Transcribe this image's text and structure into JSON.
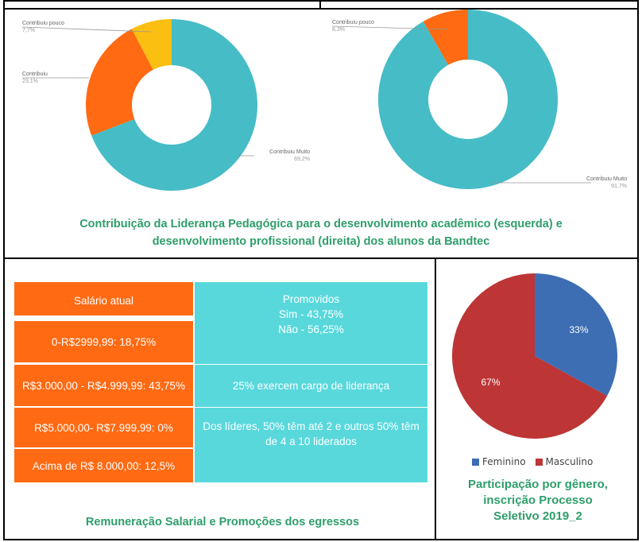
{
  "colors": {
    "teal": "#46bcc6",
    "orange": "#ff6a13",
    "yellow": "#fbbf11",
    "caption_green": "#2e9e6a",
    "table_orange": "#ff6a13",
    "table_cyan": "#59d8dc",
    "pie_blue": "#3d6eb4",
    "pie_red": "#bd3535"
  },
  "chart_data": [
    {
      "type": "pie",
      "variant": "donut",
      "slices": [
        {
          "label": "Contribuiu Muito",
          "value": 69.2,
          "display": "69,2%",
          "color": "#46bcc6"
        },
        {
          "label": "Contribuiu",
          "value": 23.1,
          "display": "23,1%",
          "color": "#ff6a13"
        },
        {
          "label": "Contribuiu pouco",
          "value": 7.7,
          "display": "7,7%",
          "color": "#fbbf11"
        }
      ]
    },
    {
      "type": "pie",
      "variant": "donut",
      "slices": [
        {
          "label": "Contribuiu Muito",
          "value": 91.7,
          "display": "91,7%",
          "color": "#46bcc6"
        },
        {
          "label": "Contribuiu pouco",
          "value": 8.3,
          "display": "8,3%",
          "color": "#ff6a13"
        }
      ]
    },
    {
      "type": "pie",
      "slices": [
        {
          "label": "Feminino",
          "value": 33,
          "display": "33%",
          "color": "#3d6eb4"
        },
        {
          "label": "Masculino",
          "value": 67,
          "display": "67%",
          "color": "#bd3535"
        }
      ],
      "legend": "bottom"
    }
  ],
  "captions": {
    "top_line1": "Contribuição da Liderança Pedagógica para o desenvolvimento acadêmico (esquerda) e",
    "top_line2": "desenvolvimento profissional (direita) dos alunos da Bandtec",
    "table": "Remuneração Salarial e Promoções dos egressos",
    "pie_line1": "Participação por gênero,",
    "pie_line2": "inscrição Processo",
    "pie_line3": "Seletivo 2019_2"
  },
  "table": {
    "left": [
      "Salário atual",
      "0-R$2999,99: 18,75%",
      "R$3.000,00 - R$4.999,99: 43,75%",
      "R$5.000,00- R$7.999,99: 0%",
      "Acima de R$ 8.000,00: 12,5%"
    ],
    "right": {
      "promovidos": "Promovidos",
      "sim": "Sim - 43,75%",
      "nao": "Não - 56,25%",
      "lideranca": "25% exercem cargo de liderança",
      "lideres": "Dos líderes, 50% têm até 2 e outros 50% têm de 4 a 10 liderados"
    }
  }
}
